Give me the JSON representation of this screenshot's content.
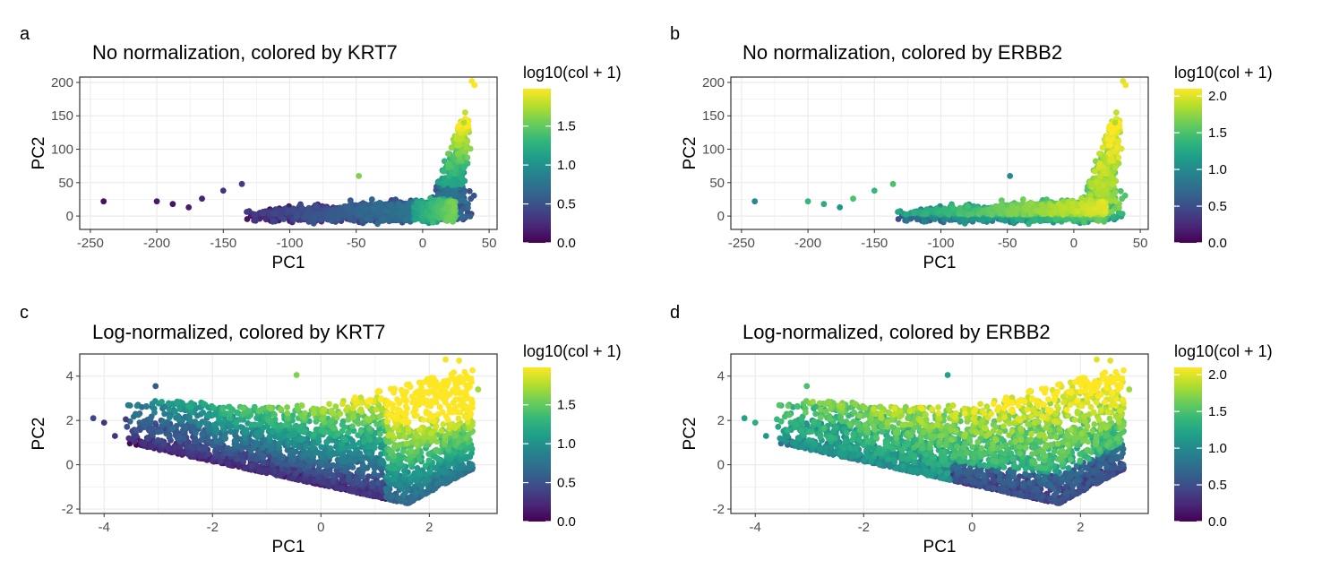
{
  "figure": {
    "panels": [
      {
        "letter": "a",
        "title": "No normalization, colored by KRT7",
        "legend": {
          "title": "log10(col + 1)",
          "ticks": [
            "0.0",
            "0.5",
            "1.0",
            "1.5"
          ]
        }
      },
      {
        "letter": "b",
        "title": "No normalization, colored by ERBB2",
        "legend": {
          "title": "log10(col + 1)",
          "ticks": [
            "0.0",
            "0.5",
            "1.0",
            "1.5",
            "2.0"
          ]
        }
      },
      {
        "letter": "c",
        "title": "Log-normalized, colored by KRT7",
        "legend": {
          "title": "log10(col + 1)",
          "ticks": [
            "0.0",
            "0.5",
            "1.0",
            "1.5"
          ]
        }
      },
      {
        "letter": "d",
        "title": "Log-normalized, colored by ERBB2",
        "legend": {
          "title": "log10(col + 1)",
          "ticks": [
            "0.0",
            "0.5",
            "1.0",
            "1.5",
            "2.0"
          ]
        }
      }
    ],
    "colors": {
      "viridis": [
        "#440154",
        "#482878",
        "#3E4A89",
        "#31688E",
        "#26828E",
        "#1F9E89",
        "#35B779",
        "#6DCD59",
        "#B4DE2C",
        "#FDE725"
      ],
      "grid": "#EBEBEB",
      "axis_text": "#4D4D4D"
    }
  },
  "chart_data": [
    {
      "panel": "a",
      "type": "scatter",
      "title": "No normalization, colored by KRT7",
      "xlabel": "PC1",
      "ylabel": "PC2",
      "xlim": [
        -258,
        56
      ],
      "ylim": [
        -20,
        208
      ],
      "xticks": [
        -250,
        -200,
        -150,
        -100,
        -50,
        0,
        50
      ],
      "yticks": [
        0,
        50,
        100,
        150,
        200
      ],
      "color_scale": {
        "name": "viridis",
        "title": "log10(col + 1)",
        "range": [
          0,
          1.98
        ],
        "ticks": [
          0,
          0.5,
          1.0,
          1.5
        ]
      },
      "grid": true,
      "legend_position": "right",
      "points": [
        {
          "x": -240,
          "y": 22,
          "c": 0.1
        },
        {
          "x": -200,
          "y": 22,
          "c": 0.15
        },
        {
          "x": -188,
          "y": 18,
          "c": 0.1
        },
        {
          "x": -176,
          "y": 13,
          "c": 0.15
        },
        {
          "x": -166,
          "y": 26,
          "c": 0.2
        },
        {
          "x": -150,
          "y": 38,
          "c": 0.3
        },
        {
          "x": -136,
          "y": 48,
          "c": 0.35
        },
        {
          "x": -48,
          "y": 60,
          "c": 1.6
        },
        {
          "x": 37,
          "y": 202,
          "c": 1.95
        },
        {
          "x": 39,
          "y": 196,
          "c": 1.98
        },
        {
          "x": 32,
          "y": 155,
          "c": 1.8
        },
        {
          "x": 31,
          "y": 140,
          "c": 1.75
        }
      ],
      "summary": "Most cells form a dense band near PC2 between -10 and 30 across PC1 -140 to 25; a steep arm rises near PC1 20-40 up to PC2 about 200 with high KRT7 values (yellow-green)."
    },
    {
      "panel": "b",
      "type": "scatter",
      "title": "No normalization, colored by ERBB2",
      "xlabel": "PC1",
      "ylabel": "PC2",
      "xlim": [
        -258,
        56
      ],
      "ylim": [
        -20,
        208
      ],
      "xticks": [
        -250,
        -200,
        -150,
        -100,
        -50,
        0,
        50
      ],
      "yticks": [
        0,
        50,
        100,
        150,
        200
      ],
      "color_scale": {
        "name": "viridis",
        "title": "log10(col + 1)",
        "range": [
          0,
          2.1
        ],
        "ticks": [
          0,
          0.5,
          1.0,
          1.5,
          2.0
        ]
      },
      "grid": true,
      "legend_position": "right",
      "points": [
        {
          "x": -240,
          "y": 22,
          "c": 1.0
        },
        {
          "x": -200,
          "y": 22,
          "c": 1.4
        },
        {
          "x": -188,
          "y": 18,
          "c": 1.3
        },
        {
          "x": -176,
          "y": 13,
          "c": 1.1
        },
        {
          "x": -166,
          "y": 26,
          "c": 1.5
        },
        {
          "x": -150,
          "y": 38,
          "c": 1.4
        },
        {
          "x": -136,
          "y": 48,
          "c": 1.5
        },
        {
          "x": -48,
          "y": 60,
          "c": 1.0
        },
        {
          "x": 37,
          "y": 202,
          "c": 2.0
        },
        {
          "x": 39,
          "y": 196,
          "c": 2.05
        },
        {
          "x": 32,
          "y": 155,
          "c": 1.9
        },
        {
          "x": 31,
          "y": 140,
          "c": 1.85
        }
      ],
      "summary": "Same layout as panel a; ERBB2 values are intermediate (teal-green) across the band, lower (purple) in the bottom edge and highest (yellow) in the right arm."
    },
    {
      "panel": "c",
      "type": "scatter",
      "title": "Log-normalized, colored by KRT7",
      "xlabel": "PC1",
      "ylabel": "PC2",
      "xlim": [
        -4.45,
        3.25
      ],
      "ylim": [
        -2.2,
        5.0
      ],
      "xticks": [
        -4,
        -2,
        0,
        2
      ],
      "yticks": [
        -2,
        0,
        2,
        4
      ],
      "color_scale": {
        "name": "viridis",
        "title": "log10(col + 1)",
        "range": [
          0,
          1.98
        ],
        "ticks": [
          0,
          0.5,
          1.0,
          1.5
        ]
      },
      "grid": true,
      "legend_position": "right",
      "points": [
        {
          "x": -4.2,
          "y": 2.1,
          "c": 0.4
        },
        {
          "x": -4.0,
          "y": 1.9,
          "c": 0.3
        },
        {
          "x": -3.8,
          "y": 1.3,
          "c": 0.3
        },
        {
          "x": -3.6,
          "y": 2.05,
          "c": 0.35
        },
        {
          "x": -3.05,
          "y": 3.55,
          "c": 0.55
        },
        {
          "x": -0.45,
          "y": 4.05,
          "c": 1.6
        },
        {
          "x": 2.3,
          "y": 4.75,
          "c": 1.95
        },
        {
          "x": 2.55,
          "y": 4.7,
          "c": 1.95
        },
        {
          "x": 2.9,
          "y": 3.4,
          "c": 1.7
        }
      ],
      "summary": "Cells form a wedge: a lower band sloping from PC1 -4 (PC2 ~1) down to PC1 1.5 (PC2 ~-1.8), rising steeply toward PC1 2-3 (PC2 up to ~4.7). KRT7 low (dark purple) in the lower band, high (yellow) in the upper right."
    },
    {
      "panel": "d",
      "type": "scatter",
      "title": "Log-normalized, colored by ERBB2",
      "xlabel": "PC1",
      "ylabel": "PC2",
      "xlim": [
        -4.45,
        3.25
      ],
      "ylim": [
        -2.2,
        5.0
      ],
      "xticks": [
        -4,
        -2,
        0,
        2
      ],
      "yticks": [
        -2,
        0,
        2,
        4
      ],
      "color_scale": {
        "name": "viridis",
        "title": "log10(col + 1)",
        "range": [
          0,
          2.1
        ],
        "ticks": [
          0,
          0.5,
          1.0,
          1.5,
          2.0
        ]
      },
      "grid": true,
      "legend_position": "right",
      "points": [
        {
          "x": -4.2,
          "y": 2.1,
          "c": 1.2
        },
        {
          "x": -4.0,
          "y": 1.9,
          "c": 1.3
        },
        {
          "x": -3.8,
          "y": 1.3,
          "c": 1.1
        },
        {
          "x": -3.6,
          "y": 2.05,
          "c": 1.4
        },
        {
          "x": -3.05,
          "y": 3.55,
          "c": 1.5
        },
        {
          "x": -0.45,
          "y": 4.05,
          "c": 1.2
        },
        {
          "x": 2.3,
          "y": 4.75,
          "c": 2.0
        },
        {
          "x": 2.55,
          "y": 4.7,
          "c": 2.0
        },
        {
          "x": 2.9,
          "y": 3.4,
          "c": 1.8
        }
      ],
      "summary": "Same layout as panel c; ERBB2 moderate (teal) across most of the cloud, lowest (dark purple) along the bottom band near PC1 0-2, highest (yellow) at the top right."
    }
  ]
}
